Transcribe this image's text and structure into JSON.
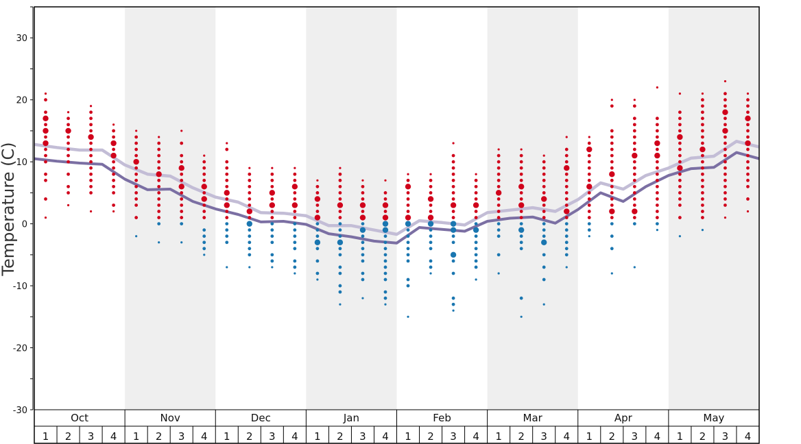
{
  "chart_data": {
    "type": "scatter",
    "ylabel": "Temperature (C)",
    "ylim": [
      -30,
      35
    ],
    "y_ticks": [
      "30",
      "20",
      "10",
      "0",
      "-10",
      "-20",
      "-30"
    ],
    "months": [
      "Oct",
      "Nov",
      "Dec",
      "Jan",
      "Feb",
      "Mar",
      "Apr",
      "May"
    ],
    "weeks": [
      "1",
      "2",
      "3",
      "4"
    ],
    "colors": {
      "warm_dot": "#d0021b",
      "cold_dot": "#1a76b0",
      "dark_line": "#7b6fa3",
      "light_line": "#c3bdd6",
      "shade": "#efefef"
    },
    "series": [
      {
        "name": "dark",
        "values": [
          10.5,
          10.1,
          9.8,
          9.6,
          7.2,
          5.5,
          5.6,
          3.6,
          2.4,
          1.5,
          0.3,
          0.4,
          -0.1,
          -1.6,
          -2.1,
          -2.8,
          -3.1,
          -0.6,
          -0.9,
          -1.2,
          0.4,
          0.9,
          1.1,
          0.1,
          2.3,
          5.0,
          3.6,
          6.0,
          7.8,
          8.9,
          9.1,
          11.5,
          10.5
        ]
      },
      {
        "name": "light",
        "values": [
          12.8,
          12.3,
          11.9,
          11.9,
          9.5,
          8.0,
          7.7,
          5.8,
          4.3,
          3.5,
          1.8,
          1.7,
          1.3,
          -0.3,
          -0.3,
          -1.0,
          -1.7,
          0.5,
          0.2,
          -0.2,
          1.8,
          2.2,
          2.6,
          2.0,
          3.9,
          6.6,
          5.6,
          7.8,
          9.0,
          10.6,
          10.9,
          13.3,
          12.4
        ]
      }
    ],
    "observations": [
      {
        "x": 0,
        "values": [
          21,
          20,
          18,
          17,
          16,
          15,
          14,
          13,
          12,
          11,
          10,
          8,
          7,
          4,
          1
        ]
      },
      {
        "x": 1,
        "values": [
          18,
          17,
          16,
          15,
          14,
          13,
          12,
          11,
          10,
          8,
          6,
          5,
          3
        ]
      },
      {
        "x": 2,
        "values": [
          19,
          18,
          17,
          16,
          15,
          14,
          13,
          12,
          11,
          10,
          9,
          8,
          7,
          6,
          5,
          2
        ]
      },
      {
        "x": 3,
        "values": [
          16,
          15,
          14,
          13,
          12,
          11,
          10,
          9,
          8,
          7,
          6,
          5,
          3,
          2
        ]
      },
      {
        "x": 4,
        "values": [
          15,
          14,
          13,
          12,
          11,
          10,
          9,
          8,
          7,
          6,
          5,
          4,
          3,
          1,
          -2
        ]
      },
      {
        "x": 5,
        "values": [
          14,
          13,
          12,
          11,
          10,
          9,
          8,
          7,
          6,
          5,
          4,
          3,
          2,
          1,
          0,
          -3
        ]
      },
      {
        "x": 6,
        "values": [
          15,
          13,
          11,
          10,
          9,
          8,
          7,
          6,
          5,
          4,
          3,
          2,
          1,
          0,
          -3
        ]
      },
      {
        "x": 7,
        "values": [
          11,
          10,
          9,
          8,
          7,
          6,
          5,
          4,
          3,
          2,
          1,
          -1,
          -2,
          -3,
          -4,
          -5
        ]
      },
      {
        "x": 8,
        "values": [
          13,
          12,
          10,
          9,
          8,
          7,
          6,
          5,
          4,
          3,
          2,
          1,
          0,
          -1,
          -2,
          -3,
          -7
        ]
      },
      {
        "x": 9,
        "values": [
          9,
          8,
          7,
          6,
          5,
          4,
          3,
          2,
          1,
          0,
          -1,
          -2,
          -3,
          -4,
          -5,
          -7
        ]
      },
      {
        "x": 10,
        "values": [
          9,
          8,
          7,
          6,
          5,
          4,
          3,
          2,
          1,
          0,
          -1,
          -2,
          -3,
          -5,
          -6,
          -7
        ]
      },
      {
        "x": 11,
        "values": [
          9,
          8,
          7,
          6,
          5,
          4,
          3,
          2,
          1,
          0,
          -1,
          -2,
          -3,
          -4,
          -6,
          -7,
          -8
        ]
      },
      {
        "x": 12,
        "values": [
          7,
          6,
          5,
          4,
          3,
          2,
          1,
          0,
          -1,
          -2,
          -3,
          -4,
          -6,
          -8,
          -9
        ]
      },
      {
        "x": 13,
        "values": [
          9,
          8,
          7,
          6,
          5,
          4,
          3,
          2,
          1,
          0,
          -1,
          -2,
          -3,
          -4,
          -5,
          -7,
          -8,
          -10,
          -11,
          -13
        ]
      },
      {
        "x": 14,
        "values": [
          7,
          6,
          5,
          4,
          3,
          2,
          1,
          0,
          -1,
          -2,
          -3,
          -4,
          -5,
          -6,
          -8,
          -9,
          -12
        ]
      },
      {
        "x": 15,
        "values": [
          7,
          5,
          4,
          3,
          2,
          1,
          0,
          -1,
          -2,
          -3,
          -4,
          -5,
          -6,
          -7,
          -8,
          -9,
          -11,
          -12,
          -13
        ]
      },
      {
        "x": 16,
        "values": [
          8,
          7,
          6,
          5,
          4,
          3,
          2,
          1,
          0,
          -1,
          -2,
          -3,
          -4,
          -5,
          -6,
          -9,
          -10,
          -15
        ]
      },
      {
        "x": 17,
        "values": [
          8,
          7,
          6,
          5,
          4,
          3,
          2,
          1,
          0,
          -1,
          -2,
          -3,
          -4,
          -6,
          -7,
          -8
        ]
      },
      {
        "x": 18,
        "values": [
          13,
          11,
          10,
          9,
          8,
          7,
          6,
          5,
          4,
          3,
          2,
          1,
          0,
          -1,
          -2,
          -3,
          -5,
          -6,
          -8,
          -12,
          -13,
          -14
        ]
      },
      {
        "x": 19,
        "values": [
          8,
          7,
          6,
          5,
          4,
          3,
          2,
          1,
          0,
          -1,
          -2,
          -3,
          -4,
          -5,
          -6,
          -7,
          -9
        ]
      },
      {
        "x": 20,
        "values": [
          12,
          11,
          10,
          9,
          8,
          7,
          6,
          5,
          4,
          3,
          2,
          1,
          0,
          -1,
          -2,
          -5,
          -8
        ]
      },
      {
        "x": 21,
        "values": [
          12,
          11,
          10,
          9,
          8,
          7,
          6,
          5,
          4,
          3,
          2,
          1,
          0,
          -1,
          -2,
          -3,
          -4,
          -12,
          -15
        ]
      },
      {
        "x": 22,
        "values": [
          11,
          10,
          9,
          8,
          7,
          6,
          5,
          4,
          3,
          2,
          1,
          0,
          -1,
          -2,
          -3,
          -5,
          -7,
          -9,
          -13
        ]
      },
      {
        "x": 23,
        "values": [
          14,
          12,
          11,
          10,
          9,
          8,
          7,
          6,
          5,
          4,
          3,
          2,
          1,
          0,
          -1,
          -2,
          -3,
          -4,
          -5,
          -7
        ]
      },
      {
        "x": 24,
        "values": [
          14,
          13,
          12,
          11,
          10,
          9,
          8,
          7,
          6,
          5,
          4,
          3,
          2,
          1,
          0,
          -1,
          -2
        ]
      },
      {
        "x": 25,
        "values": [
          20,
          19,
          15,
          14,
          13,
          12,
          11,
          10,
          9,
          8,
          7,
          6,
          5,
          4,
          3,
          2,
          1,
          0,
          -2,
          -4,
          -8
        ]
      },
      {
        "x": 26,
        "values": [
          20,
          19,
          17,
          16,
          15,
          14,
          13,
          12,
          11,
          10,
          9,
          8,
          7,
          6,
          5,
          4,
          3,
          2,
          1,
          0,
          -7
        ]
      },
      {
        "x": 27,
        "values": [
          22,
          17,
          16,
          15,
          14,
          13,
          12,
          11,
          10,
          9,
          8,
          7,
          6,
          5,
          4,
          3,
          2,
          1,
          0,
          -1
        ]
      },
      {
        "x": 28,
        "values": [
          21,
          18,
          17,
          16,
          15,
          14,
          13,
          12,
          11,
          10,
          9,
          8,
          7,
          6,
          5,
          4,
          3,
          1,
          -2
        ]
      },
      {
        "x": 29,
        "values": [
          21,
          20,
          19,
          18,
          17,
          16,
          15,
          14,
          13,
          12,
          11,
          10,
          9,
          8,
          7,
          6,
          5,
          4,
          3,
          2,
          1,
          -1
        ]
      },
      {
        "x": 30,
        "values": [
          23,
          21,
          20,
          19,
          18,
          17,
          16,
          15,
          14,
          13,
          12,
          11,
          10,
          9,
          8,
          7,
          6,
          5,
          4,
          3,
          1
        ]
      },
      {
        "x": 31,
        "values": [
          21,
          20,
          19,
          18,
          17,
          16,
          15,
          14,
          13,
          12,
          11,
          10,
          9,
          8,
          7,
          6,
          4,
          2
        ]
      }
    ],
    "large_dots": [
      [
        0,
        15
      ],
      [
        0,
        13
      ],
      [
        0,
        17
      ],
      [
        1,
        15
      ],
      [
        2,
        14
      ],
      [
        3,
        13
      ],
      [
        3,
        11
      ],
      [
        4,
        10
      ],
      [
        5,
        8
      ],
      [
        6,
        6
      ],
      [
        6,
        9
      ],
      [
        7,
        6
      ],
      [
        7,
        4
      ],
      [
        8,
        5
      ],
      [
        8,
        3
      ],
      [
        9,
        2
      ],
      [
        10,
        5
      ],
      [
        10,
        3
      ],
      [
        11,
        6
      ],
      [
        11,
        3
      ],
      [
        12,
        4
      ],
      [
        12,
        1
      ],
      [
        13,
        3
      ],
      [
        14,
        3
      ],
      [
        14,
        1
      ],
      [
        15,
        3
      ],
      [
        15,
        1
      ],
      [
        16,
        6
      ],
      [
        16,
        1
      ],
      [
        17,
        4
      ],
      [
        17,
        1
      ],
      [
        18,
        3
      ],
      [
        19,
        3
      ],
      [
        20,
        5
      ],
      [
        21,
        6
      ],
      [
        21,
        3
      ],
      [
        22,
        4
      ],
      [
        23,
        9
      ],
      [
        23,
        2
      ],
      [
        24,
        12
      ],
      [
        24,
        6
      ],
      [
        25,
        8
      ],
      [
        25,
        2
      ],
      [
        26,
        11
      ],
      [
        26,
        2
      ],
      [
        27,
        11
      ],
      [
        27,
        13
      ],
      [
        28,
        14
      ],
      [
        28,
        9
      ],
      [
        29,
        12
      ],
      [
        30,
        15
      ],
      [
        30,
        18
      ],
      [
        31,
        13
      ],
      [
        31,
        17
      ],
      [
        12,
        -3
      ],
      [
        13,
        -3
      ],
      [
        14,
        -1
      ],
      [
        15,
        0
      ],
      [
        15,
        -1
      ],
      [
        16,
        0
      ],
      [
        17,
        0
      ],
      [
        18,
        0
      ],
      [
        18,
        -1
      ],
      [
        18,
        -5
      ],
      [
        19,
        -1
      ],
      [
        21,
        -1
      ],
      [
        22,
        -3
      ],
      [
        9,
        0
      ]
    ]
  }
}
